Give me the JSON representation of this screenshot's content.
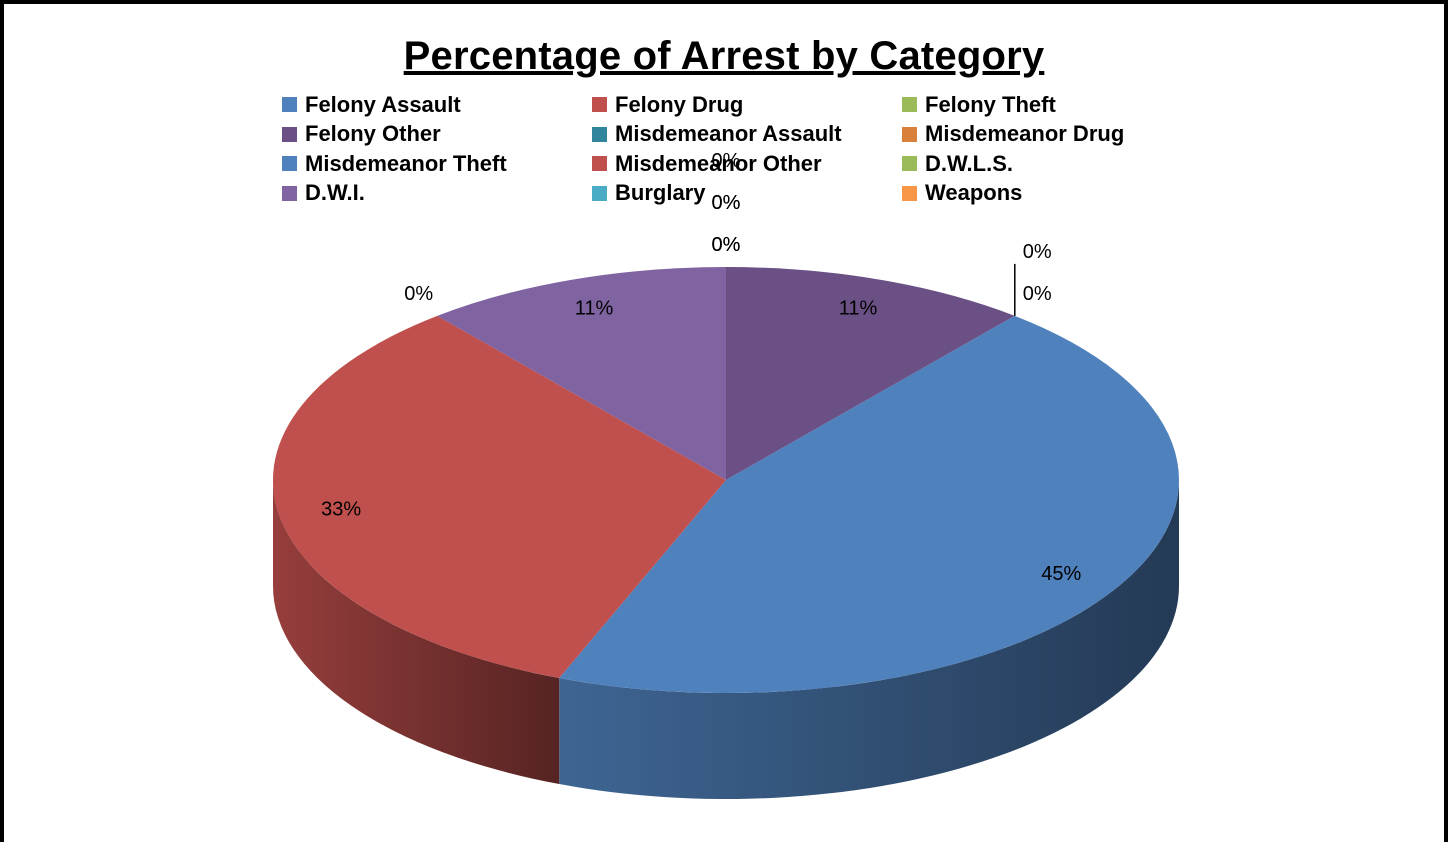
{
  "chart_data": {
    "type": "pie",
    "title": "Percentage of Arrest by Category",
    "legend_position": "top",
    "three_d": true,
    "slices": [
      {
        "name": "Felony Assault",
        "value": 0,
        "label": "0%",
        "color": "#4f81bd"
      },
      {
        "name": "Felony Drug",
        "value": 0,
        "label": "0%",
        "color": "#c0504d"
      },
      {
        "name": "Felony Theft",
        "value": 0,
        "label": "0%",
        "color": "#9bbb59"
      },
      {
        "name": "Felony Other",
        "value": 11,
        "label": "11%",
        "color": "#6a5085"
      },
      {
        "name": "Misdemeanor Assault",
        "value": 0,
        "label": "0%",
        "color": "#31859c"
      },
      {
        "name": "Misdemeanor Drug",
        "value": 0,
        "label": "0%",
        "color": "#d9803b"
      },
      {
        "name": "Misdemeanor Theft",
        "value": 45,
        "label": "45%",
        "color": "#4f81bd"
      },
      {
        "name": "Misdemeanor Other",
        "value": 33,
        "label": "33%",
        "color": "#c0504d"
      },
      {
        "name": "D.W.L.S.",
        "value": 0,
        "label": "0%",
        "color": "#9bbb59"
      },
      {
        "name": "D.W.I.",
        "value": 11,
        "label": "11%",
        "color": "#8064a2"
      },
      {
        "name": "Burglary",
        "value": 0,
        "label": "0%",
        "color": "#4bacc6"
      },
      {
        "name": "Weapons",
        "value": 0,
        "label": "0%",
        "color": "#f79646"
      }
    ]
  }
}
